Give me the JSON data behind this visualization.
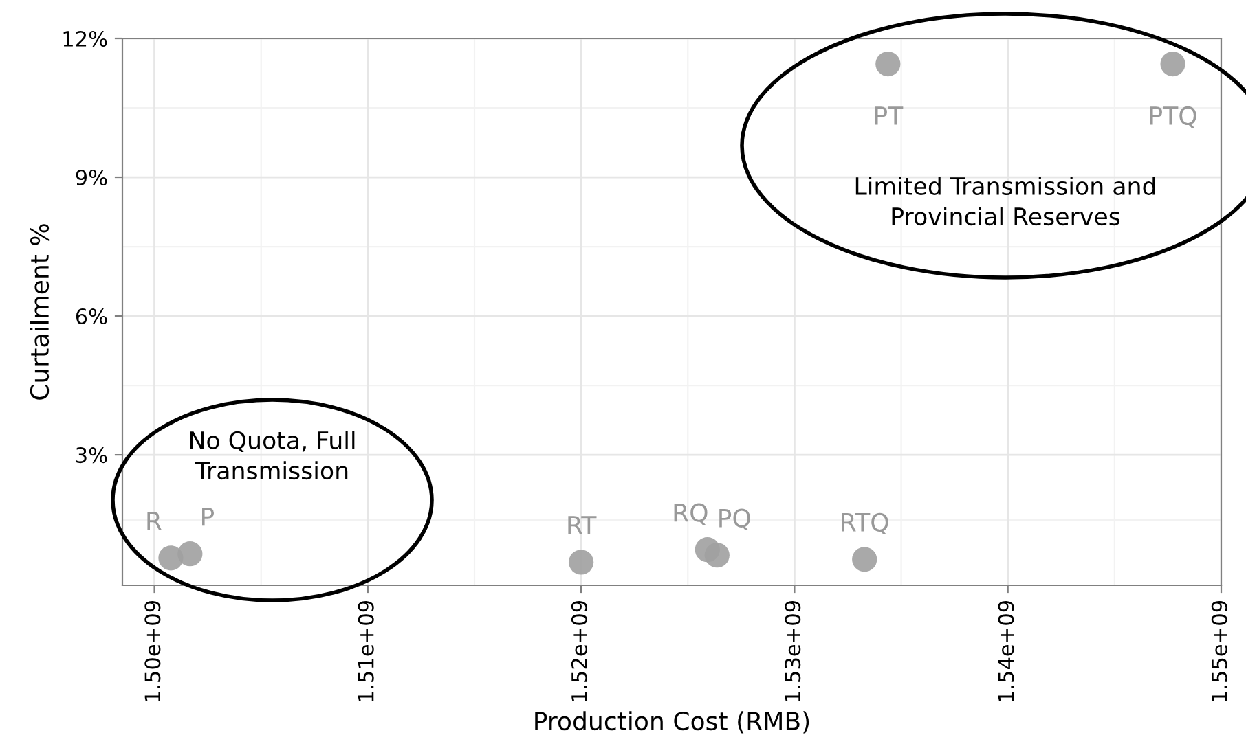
{
  "chart_data": {
    "type": "scatter",
    "xlabel": "Production Cost (RMB)",
    "ylabel": "Curtailment %",
    "x": [
      1500770000,
      1501670000,
      1520000000,
      1525920000,
      1526370000,
      1533280000,
      1534380000,
      1547730000
    ],
    "values": [
      0.77,
      0.86,
      0.68,
      0.95,
      0.83,
      0.74,
      11.45,
      11.45
    ],
    "color": "#a0a0a0",
    "marker": "circle",
    "grid": true,
    "xlim": [
      1498500000,
      1550000000
    ],
    "xticks": [
      {
        "value": 1500000000,
        "label": "1.50e+09"
      },
      {
        "value": 1510000000,
        "label": "1.51e+09"
      },
      {
        "value": 1520000000,
        "label": "1.52e+09"
      },
      {
        "value": 1530000000,
        "label": "1.53e+09"
      },
      {
        "value": 1540000000,
        "label": "1.54e+09"
      },
      {
        "value": 1550000000,
        "label": "1.55e+09"
      }
    ],
    "ylim": [
      0.18,
      12
    ],
    "yticks": [
      {
        "value": 3,
        "label": "3%"
      },
      {
        "value": 6,
        "label": "6%"
      },
      {
        "value": 9,
        "label": "9%"
      },
      {
        "value": 12,
        "label": "12%"
      }
    ],
    "annotations": [
      {
        "text": "R",
        "x": 1500770000,
        "y": 0.77
      },
      {
        "text": "P",
        "x": 1501670000,
        "y": 0.86
      },
      {
        "text": "RT",
        "x": 1520000000,
        "y": 0.68
      },
      {
        "text": "RQ",
        "x": 1525920000,
        "y": 0.95
      },
      {
        "text": "PQ",
        "x": 1526370000,
        "y": 0.83
      },
      {
        "text": "RTQ",
        "x": 1533280000,
        "y": 0.74
      },
      {
        "text": "PT",
        "x": 1534380000,
        "y": 11.45
      },
      {
        "text": "PTQ",
        "x": 1547730000,
        "y": 11.45
      },
      "No Quota, Full\nTransmission",
      "Limited Transmission and\nProvincial Reserves"
    ]
  }
}
